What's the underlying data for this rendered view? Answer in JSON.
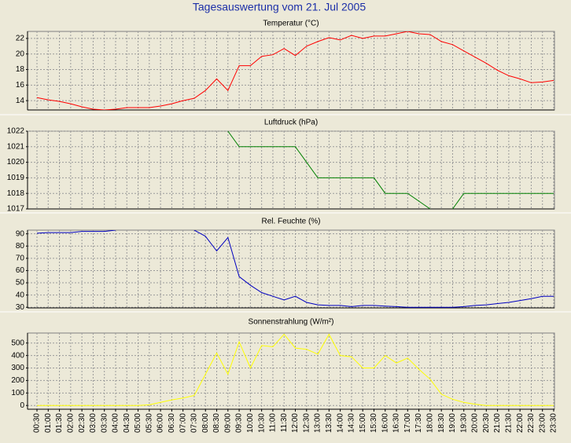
{
  "title": "Tagesauswertung vom 21. Jul 2005",
  "chart_data": [
    {
      "type": "line",
      "title": "Temperatur (°C)",
      "color": "#ff0000",
      "grid": true,
      "categories": [
        "00:30",
        "01:00",
        "01:30",
        "02:00",
        "02:30",
        "03:00",
        "03:30",
        "04:00",
        "04:30",
        "05:00",
        "05:30",
        "06:00",
        "06:30",
        "07:00",
        "07:30",
        "08:00",
        "08:30",
        "09:00",
        "09:30",
        "10:00",
        "10:30",
        "11:00",
        "11:30",
        "12:00",
        "12:30",
        "13:00",
        "13:30",
        "14:00",
        "14:30",
        "15:00",
        "15:30",
        "16:00",
        "16:30",
        "17:00",
        "17:30",
        "18:00",
        "18:30",
        "19:00",
        "19:30",
        "20:00",
        "20:30",
        "21:00",
        "21:30",
        "22:00",
        "22:30",
        "23:00",
        "23:30"
      ],
      "values": [
        14.4,
        14.1,
        13.9,
        13.6,
        13.2,
        12.9,
        12.8,
        12.9,
        13.1,
        13.1,
        13.1,
        13.3,
        13.6,
        14.0,
        14.3,
        15.3,
        16.8,
        15.3,
        18.5,
        18.5,
        19.7,
        19.9,
        20.7,
        19.8,
        21.0,
        21.6,
        22.1,
        21.8,
        22.4,
        22.0,
        22.3,
        22.3,
        22.6,
        22.9,
        22.6,
        22.5,
        21.6,
        21.2,
        20.4,
        19.6,
        18.8,
        17.9,
        17.2,
        16.8,
        16.3,
        16.4,
        16.6
      ],
      "ylim": [
        12.8,
        22.9
      ],
      "yticks": [
        14,
        16,
        18,
        20,
        22
      ]
    },
    {
      "type": "line",
      "title": "Luftdruck (hPa)",
      "color": "#008000",
      "grid": true,
      "categories": [
        "00:30",
        "01:00",
        "01:30",
        "02:00",
        "02:30",
        "03:00",
        "03:30",
        "04:00",
        "04:30",
        "05:00",
        "05:30",
        "06:00",
        "06:30",
        "07:00",
        "07:30",
        "08:00",
        "08:30",
        "09:00",
        "09:30",
        "10:00",
        "10:30",
        "11:00",
        "11:30",
        "12:00",
        "12:30",
        "13:00",
        "13:30",
        "14:00",
        "14:30",
        "15:00",
        "15:30",
        "16:00",
        "16:30",
        "17:00",
        "17:30",
        "18:00",
        "18:30",
        "19:00",
        "19:30",
        "20:00",
        "20:30",
        "21:00",
        "21:30",
        "22:00",
        "22:30",
        "23:00",
        "23:30"
      ],
      "values": [
        null,
        null,
        null,
        null,
        null,
        null,
        null,
        null,
        null,
        null,
        null,
        null,
        null,
        null,
        null,
        null,
        null,
        1022,
        1021,
        1021,
        1021,
        1021,
        1021,
        1021,
        1020,
        1019,
        1019,
        1019,
        1019,
        1019,
        1019,
        1018,
        1018,
        1018,
        1017.5,
        1017,
        null,
        1017,
        1018,
        1018,
        1018,
        1018,
        1018,
        1018,
        1018,
        1018,
        1018
      ],
      "ylim": [
        1017,
        1022
      ],
      "yticks": [
        1017,
        1018,
        1019,
        1020,
        1021,
        1022
      ]
    },
    {
      "type": "line",
      "title": "Rel. Feuchte (%)",
      "color": "#0000c0",
      "grid": true,
      "categories": [
        "00:30",
        "01:00",
        "01:30",
        "02:00",
        "02:30",
        "03:00",
        "03:30",
        "04:00",
        "04:30",
        "05:00",
        "05:30",
        "06:00",
        "06:30",
        "07:00",
        "07:30",
        "08:00",
        "08:30",
        "09:00",
        "09:30",
        "10:00",
        "10:30",
        "11:00",
        "11:30",
        "12:00",
        "12:30",
        "13:00",
        "13:30",
        "14:00",
        "14:30",
        "15:00",
        "15:30",
        "16:00",
        "16:30",
        "17:00",
        "17:30",
        "18:00",
        "18:30",
        "19:00",
        "19:30",
        "20:00",
        "20:30",
        "21:00",
        "21:30",
        "22:00",
        "22:30",
        "23:00",
        "23:30"
      ],
      "values": [
        90.5,
        91,
        91,
        91,
        92,
        92,
        92,
        93,
        null,
        null,
        null,
        null,
        null,
        null,
        93,
        88,
        76,
        87,
        55,
        48,
        42,
        39,
        36,
        39,
        34,
        32,
        31.5,
        31.5,
        30.5,
        31.5,
        31.5,
        31,
        30.5,
        30,
        30,
        30,
        30,
        30,
        30.5,
        31.5,
        32,
        33,
        34,
        35.5,
        37,
        39,
        39
      ],
      "ylim": [
        29.5,
        93
      ],
      "yticks": [
        30,
        40,
        50,
        60,
        70,
        80,
        90
      ]
    },
    {
      "type": "line",
      "title": "Sonnenstrahlung (W/m²)",
      "color": "#ffff00",
      "grid": true,
      "categories": [
        "00:30",
        "01:00",
        "01:30",
        "02:00",
        "02:30",
        "03:00",
        "03:30",
        "04:00",
        "04:30",
        "05:00",
        "05:30",
        "06:00",
        "06:30",
        "07:00",
        "07:30",
        "08:00",
        "08:30",
        "09:00",
        "09:30",
        "10:00",
        "10:30",
        "11:00",
        "11:30",
        "12:00",
        "12:30",
        "13:00",
        "13:30",
        "14:00",
        "14:30",
        "15:00",
        "15:30",
        "16:00",
        "16:30",
        "17:00",
        "17:30",
        "18:00",
        "18:30",
        "19:00",
        "19:30",
        "20:00",
        "20:30",
        "21:00",
        "21:30",
        "22:00",
        "22:30",
        "23:00",
        "23:30"
      ],
      "values": [
        0,
        0,
        0,
        0,
        0,
        0,
        0,
        0,
        0,
        0,
        5,
        25,
        45,
        60,
        80,
        250,
        420,
        250,
        510,
        300,
        480,
        470,
        570,
        460,
        450,
        410,
        570,
        400,
        390,
        300,
        300,
        400,
        340,
        380,
        290,
        210,
        90,
        50,
        25,
        10,
        0,
        0,
        0,
        0,
        0,
        0,
        0
      ],
      "ylim": [
        -30,
        580
      ],
      "yticks": [
        0,
        100,
        200,
        300,
        400,
        500
      ]
    }
  ]
}
